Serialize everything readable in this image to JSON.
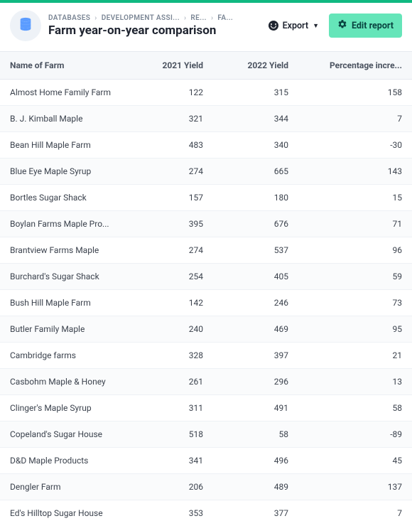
{
  "colors": {
    "accent_bar": "#10b981",
    "edit_bg": "#65e5b9",
    "edit_fg": "#094340",
    "db_icon_fill": "#5b9cff"
  },
  "breadcrumbs": [
    {
      "label": "DATABASES"
    },
    {
      "label": "DEVELOPMENT ASSI..."
    },
    {
      "label": "RE..."
    },
    {
      "label": "FA..."
    }
  ],
  "page_title": "Farm year-on-year comparison",
  "actions": {
    "export_label": "Export",
    "edit_label": "Edit report"
  },
  "table": {
    "columns": [
      {
        "label": "Name of Farm",
        "align": "left"
      },
      {
        "label": "2021 Yield",
        "align": "right"
      },
      {
        "label": "2022 Yield",
        "align": "right"
      },
      {
        "label": "Percentage incre...",
        "align": "right"
      }
    ],
    "rows": [
      {
        "name": "Almost Home Family Farm",
        "y2021": 122,
        "y2022": 315,
        "pct": 158
      },
      {
        "name": "B. J. Kimball Maple",
        "y2021": 321,
        "y2022": 344,
        "pct": 7
      },
      {
        "name": "Bean Hill Maple Farm",
        "y2021": 483,
        "y2022": 340,
        "pct": -30
      },
      {
        "name": "Blue Eye Maple Syrup",
        "y2021": 274,
        "y2022": 665,
        "pct": 143
      },
      {
        "name": "Bortles Sugar Shack",
        "y2021": 157,
        "y2022": 180,
        "pct": 15
      },
      {
        "name": "Boylan Farms Maple Pro...",
        "y2021": 395,
        "y2022": 676,
        "pct": 71
      },
      {
        "name": "Brantview Farms Maple",
        "y2021": 274,
        "y2022": 537,
        "pct": 96
      },
      {
        "name": "Burchard's Sugar Shack",
        "y2021": 254,
        "y2022": 405,
        "pct": 59
      },
      {
        "name": "Bush Hill Maple Farm",
        "y2021": 142,
        "y2022": 246,
        "pct": 73
      },
      {
        "name": "Butler Family Maple",
        "y2021": 240,
        "y2022": 469,
        "pct": 95
      },
      {
        "name": "Cambridge farms",
        "y2021": 328,
        "y2022": 397,
        "pct": 21
      },
      {
        "name": "Casbohm Maple & Honey",
        "y2021": 261,
        "y2022": 296,
        "pct": 13
      },
      {
        "name": "Clinger's Maple Syrup",
        "y2021": 311,
        "y2022": 491,
        "pct": 58
      },
      {
        "name": "Copeland's Sugar House",
        "y2021": 518,
        "y2022": 58,
        "pct": -89
      },
      {
        "name": "D&D Maple Products",
        "y2021": 341,
        "y2022": 496,
        "pct": 45
      },
      {
        "name": "Dengler Farm",
        "y2021": 206,
        "y2022": 489,
        "pct": 137
      },
      {
        "name": "Ed's Hilltop Sugar House",
        "y2021": 353,
        "y2022": 377,
        "pct": 7
      }
    ]
  }
}
